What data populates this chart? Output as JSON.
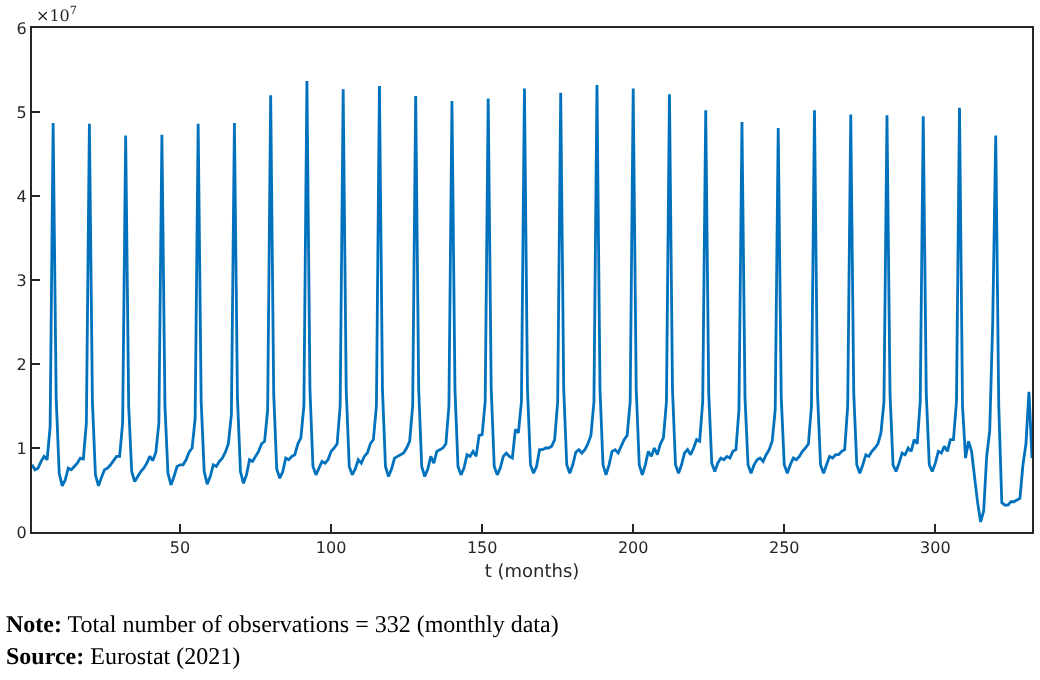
{
  "chart_data": {
    "type": "line",
    "xlabel": "t (months)",
    "annotations": [
      "×10$^{7}$",
      "Note: Total number of observations = 332 (monthly data)",
      "Source: Eurostat (2021)"
    ],
    "xlim": [
      1,
      332
    ],
    "xticks": [
      50,
      100,
      150,
      200,
      250,
      300
    ],
    "ylim": [
      0,
      6
    ],
    "yticks": [
      0,
      1,
      2,
      3,
      4,
      5,
      6
    ],
    "marker": "none",
    "line_style": "solid",
    "series": [
      {
        "color": "#0072bd",
        "x": [
          1,
          2,
          3,
          4,
          5,
          6,
          7,
          8,
          9,
          10,
          11,
          12,
          13,
          14,
          15,
          16,
          17,
          18,
          19,
          20,
          21,
          22,
          23,
          24,
          25,
          26,
          27,
          28,
          29,
          30,
          31,
          32,
          33,
          34,
          35,
          36,
          37,
          38,
          39,
          40,
          41,
          42,
          43,
          44,
          45,
          46,
          47,
          48,
          49,
          50,
          51,
          52,
          53,
          54,
          55,
          56,
          57,
          58,
          59,
          60,
          61,
          62,
          63,
          64,
          65,
          66,
          67,
          68,
          69,
          70,
          71,
          72,
          73,
          74,
          75,
          76,
          77,
          78,
          79,
          80,
          81,
          82,
          83,
          84,
          85,
          86,
          87,
          88,
          89,
          90,
          91,
          92,
          93,
          94,
          95,
          96,
          97,
          98,
          99,
          100,
          101,
          102,
          103,
          104,
          105,
          106,
          107,
          108,
          109,
          110,
          111,
          112,
          113,
          114,
          115,
          116,
          117,
          118,
          119,
          120,
          121,
          122,
          123,
          124,
          125,
          126,
          127,
          128,
          129,
          130,
          131,
          132,
          133,
          134,
          135,
          136,
          137,
          138,
          139,
          140,
          141,
          142,
          143,
          144,
          145,
          146,
          147,
          148,
          149,
          150,
          151,
          152,
          153,
          154,
          155,
          156,
          157,
          158,
          159,
          160,
          161,
          162,
          163,
          164,
          165,
          166,
          167,
          168,
          169,
          170,
          171,
          172,
          173,
          174,
          175,
          176,
          177,
          178,
          179,
          180,
          181,
          182,
          183,
          184,
          185,
          186,
          187,
          188,
          189,
          190,
          191,
          192,
          193,
          194,
          195,
          196,
          197,
          198,
          199,
          200,
          201,
          202,
          203,
          204,
          205,
          206,
          207,
          208,
          209,
          210,
          211,
          212,
          213,
          214,
          215,
          216,
          217,
          218,
          219,
          220,
          221,
          222,
          223,
          224,
          225,
          226,
          227,
          228,
          229,
          230,
          231,
          232,
          233,
          234,
          235,
          236,
          237,
          238,
          239,
          240,
          241,
          242,
          243,
          244,
          245,
          246,
          247,
          248,
          249,
          250,
          251,
          252,
          253,
          254,
          255,
          256,
          257,
          258,
          259,
          260,
          261,
          262,
          263,
          264,
          265,
          266,
          267,
          268,
          269,
          270,
          271,
          272,
          273,
          274,
          275,
          276,
          277,
          278,
          279,
          280,
          281,
          282,
          283,
          284,
          285,
          286,
          287,
          288,
          289,
          290,
          291,
          292,
          293,
          294,
          295,
          296,
          297,
          298,
          299,
          300,
          301,
          302,
          303,
          304,
          305,
          306,
          307,
          308,
          309,
          310,
          311,
          312,
          313,
          314,
          315,
          316,
          317,
          318,
          319,
          320,
          321,
          322,
          323,
          324,
          325,
          326,
          327,
          328,
          329,
          330,
          331,
          332
        ],
        "values": [
          0.8,
          0.74,
          0.76,
          0.84,
          0.9,
          0.86,
          1.25,
          4.87,
          1.6,
          0.7,
          0.55,
          0.62,
          0.76,
          0.74,
          0.78,
          0.82,
          0.88,
          0.87,
          1.3,
          4.86,
          1.55,
          0.68,
          0.55,
          0.65,
          0.74,
          0.76,
          0.8,
          0.85,
          0.9,
          0.9,
          1.3,
          4.72,
          1.5,
          0.72,
          0.6,
          0.66,
          0.72,
          0.76,
          0.82,
          0.9,
          0.85,
          0.95,
          1.3,
          4.73,
          1.5,
          0.7,
          0.56,
          0.66,
          0.78,
          0.8,
          0.8,
          0.86,
          0.95,
          1.0,
          1.35,
          4.86,
          1.55,
          0.72,
          0.57,
          0.66,
          0.8,
          0.78,
          0.84,
          0.88,
          0.95,
          1.05,
          1.4,
          4.87,
          1.6,
          0.72,
          0.58,
          0.68,
          0.86,
          0.84,
          0.9,
          0.96,
          1.05,
          1.08,
          1.45,
          5.2,
          1.65,
          0.75,
          0.64,
          0.72,
          0.88,
          0.86,
          0.9,
          0.92,
          1.05,
          1.12,
          1.5,
          5.37,
          1.7,
          0.78,
          0.68,
          0.76,
          0.84,
          0.82,
          0.86,
          0.96,
          1.0,
          1.05,
          1.5,
          5.27,
          1.7,
          0.78,
          0.68,
          0.75,
          0.86,
          0.82,
          0.9,
          0.94,
          1.05,
          1.1,
          1.5,
          5.31,
          1.7,
          0.78,
          0.66,
          0.75,
          0.88,
          0.9,
          0.92,
          0.94,
          1.0,
          1.08,
          1.5,
          5.19,
          1.7,
          0.78,
          0.66,
          0.75,
          0.9,
          0.82,
          0.96,
          0.98,
          1.0,
          1.05,
          1.5,
          5.13,
          1.7,
          0.78,
          0.68,
          0.76,
          0.92,
          0.9,
          0.96,
          0.9,
          1.15,
          1.16,
          1.55,
          5.16,
          1.7,
          0.78,
          0.68,
          0.76,
          0.9,
          0.94,
          0.9,
          0.88,
          1.22,
          1.18,
          1.55,
          5.28,
          1.7,
          0.8,
          0.7,
          0.78,
          0.98,
          0.98,
          1.0,
          1.0,
          1.02,
          1.1,
          1.55,
          5.23,
          1.7,
          0.8,
          0.7,
          0.8,
          0.95,
          0.98,
          0.94,
          0.98,
          1.05,
          1.15,
          1.55,
          5.32,
          1.7,
          0.8,
          0.68,
          0.8,
          0.96,
          0.98,
          0.94,
          1.02,
          1.1,
          1.15,
          1.55,
          5.28,
          1.7,
          0.8,
          0.68,
          0.8,
          0.96,
          0.9,
          1.0,
          0.92,
          1.05,
          1.12,
          1.55,
          5.21,
          1.7,
          0.8,
          0.7,
          0.8,
          0.94,
          0.98,
          0.92,
          1.0,
          1.1,
          1.08,
          1.55,
          5.02,
          1.65,
          0.82,
          0.72,
          0.82,
          0.88,
          0.86,
          0.9,
          0.88,
          0.96,
          0.98,
          1.45,
          4.88,
          1.6,
          0.8,
          0.7,
          0.8,
          0.86,
          0.88,
          0.84,
          0.92,
          0.98,
          1.08,
          1.45,
          4.81,
          1.6,
          0.8,
          0.7,
          0.8,
          0.88,
          0.86,
          0.9,
          0.96,
          1.0,
          1.05,
          1.5,
          5.02,
          1.65,
          0.8,
          0.7,
          0.8,
          0.9,
          0.88,
          0.92,
          0.92,
          0.96,
          0.98,
          1.5,
          4.97,
          1.65,
          0.8,
          0.7,
          0.8,
          0.92,
          0.9,
          0.96,
          1.0,
          1.05,
          1.18,
          1.55,
          4.96,
          1.65,
          0.8,
          0.72,
          0.82,
          0.94,
          0.92,
          1.0,
          0.96,
          1.1,
          1.05,
          1.55,
          4.95,
          1.65,
          0.8,
          0.72,
          0.82,
          0.96,
          0.94,
          1.02,
          0.96,
          1.1,
          1.1,
          1.55,
          5.05,
          1.5,
          0.88,
          1.08,
          0.96,
          0.65,
          0.35,
          0.12,
          0.25,
          0.9,
          1.2,
          2.5,
          4.72,
          1.5,
          0.35,
          0.32,
          0.32,
          0.36,
          0.36,
          0.38,
          0.4,
          0.8,
          1.05,
          1.67,
          0.88
        ]
      }
    ]
  }
}
